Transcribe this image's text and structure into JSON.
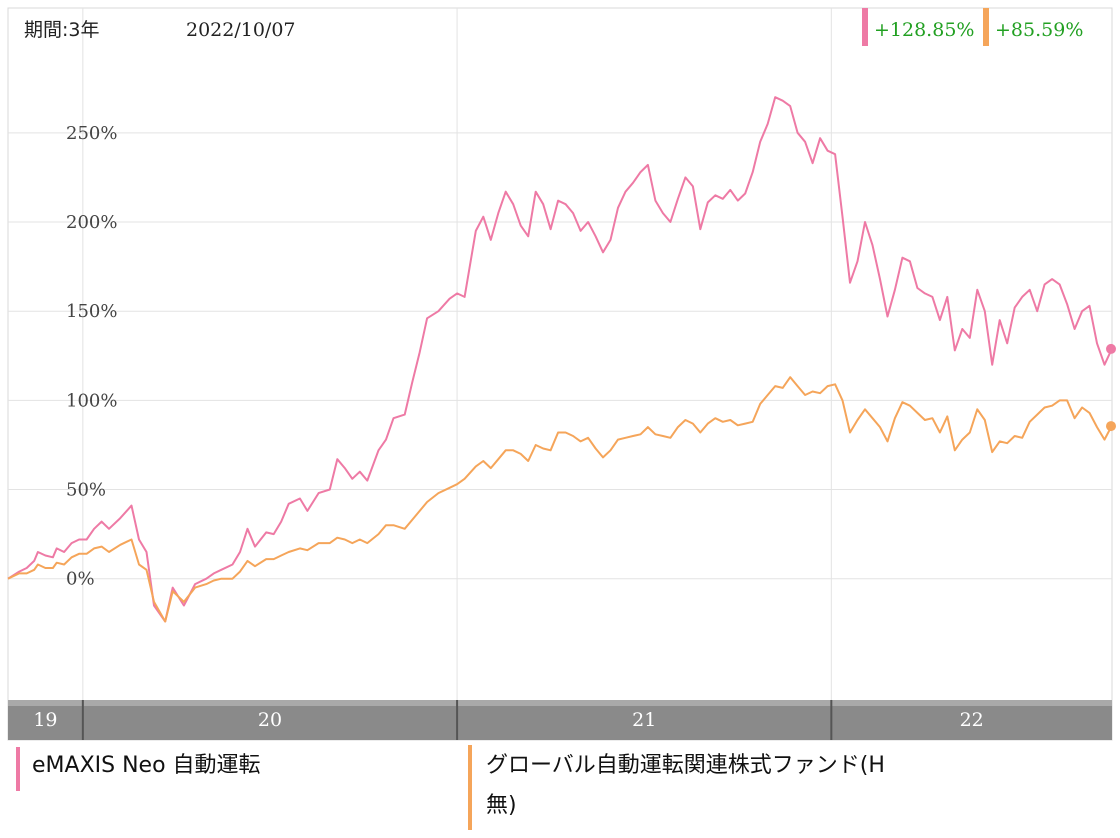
{
  "header": {
    "period": "期間:3年",
    "date": "2022/10/07",
    "badges": [
      {
        "value": "+128.85%",
        "color": "#ee7aa5"
      },
      {
        "value": "+85.59%",
        "color": "#f5a55a"
      }
    ]
  },
  "legend": [
    {
      "name": "eMAXIS Neo 自動運転",
      "color": "#ee7aa5"
    },
    {
      "name": "グローバル自動運転関連株式ファンド(H",
      "name_cont": "無)",
      "color": "#f5a55a"
    }
  ],
  "chart_data": {
    "type": "line",
    "title": "",
    "xlabel": "",
    "ylabel": "",
    "ylim": [
      -68,
      320
    ],
    "yticks": [
      0,
      50,
      100,
      150,
      200,
      250
    ],
    "ytick_labels": [
      "0%",
      "50%",
      "100%",
      "150%",
      "200%",
      "250%"
    ],
    "x_years": [
      {
        "label": "19",
        "start": 0,
        "end": 0.2
      },
      {
        "label": "20",
        "start": 0.2,
        "end": 1.2
      },
      {
        "label": "21",
        "start": 1.2,
        "end": 2.2
      },
      {
        "label": "22",
        "start": 2.2,
        "end": 2.95
      }
    ],
    "x_range": [
      0,
      2.95
    ],
    "grid": true,
    "series": [
      {
        "color": "#ee7aa5",
        "last_value": 128.85,
        "points": [
          [
            0,
            0
          ],
          [
            0.03,
            4
          ],
          [
            0.05,
            6
          ],
          [
            0.07,
            10
          ],
          [
            0.08,
            15
          ],
          [
            0.1,
            13
          ],
          [
            0.12,
            12
          ],
          [
            0.13,
            17
          ],
          [
            0.15,
            15
          ],
          [
            0.17,
            20
          ],
          [
            0.19,
            22
          ],
          [
            0.21,
            22
          ],
          [
            0.23,
            28
          ],
          [
            0.25,
            32
          ],
          [
            0.27,
            28
          ],
          [
            0.3,
            34
          ],
          [
            0.33,
            41
          ],
          [
            0.35,
            22
          ],
          [
            0.37,
            15
          ],
          [
            0.39,
            -15
          ],
          [
            0.42,
            -24
          ],
          [
            0.44,
            -5
          ],
          [
            0.47,
            -15
          ],
          [
            0.5,
            -3
          ],
          [
            0.53,
            0
          ],
          [
            0.55,
            3
          ],
          [
            0.57,
            5
          ],
          [
            0.6,
            8
          ],
          [
            0.62,
            15
          ],
          [
            0.64,
            28
          ],
          [
            0.66,
            18
          ],
          [
            0.69,
            26
          ],
          [
            0.71,
            25
          ],
          [
            0.73,
            32
          ],
          [
            0.75,
            42
          ],
          [
            0.78,
            45
          ],
          [
            0.8,
            38
          ],
          [
            0.83,
            48
          ],
          [
            0.86,
            50
          ],
          [
            0.88,
            67
          ],
          [
            0.9,
            62
          ],
          [
            0.92,
            56
          ],
          [
            0.94,
            60
          ],
          [
            0.96,
            55
          ],
          [
            0.99,
            72
          ],
          [
            1.01,
            78
          ],
          [
            1.03,
            90
          ],
          [
            1.06,
            92
          ],
          [
            1.08,
            110
          ],
          [
            1.1,
            127
          ],
          [
            1.12,
            146
          ],
          [
            1.15,
            150
          ],
          [
            1.18,
            157
          ],
          [
            1.2,
            160
          ],
          [
            1.22,
            158
          ],
          [
            1.25,
            195
          ],
          [
            1.27,
            203
          ],
          [
            1.29,
            190
          ],
          [
            1.31,
            205
          ],
          [
            1.33,
            217
          ],
          [
            1.35,
            210
          ],
          [
            1.37,
            198
          ],
          [
            1.39,
            192
          ],
          [
            1.41,
            217
          ],
          [
            1.43,
            210
          ],
          [
            1.45,
            196
          ],
          [
            1.47,
            212
          ],
          [
            1.49,
            210
          ],
          [
            1.51,
            205
          ],
          [
            1.53,
            195
          ],
          [
            1.55,
            200
          ],
          [
            1.57,
            192
          ],
          [
            1.59,
            183
          ],
          [
            1.61,
            190
          ],
          [
            1.63,
            208
          ],
          [
            1.65,
            217
          ],
          [
            1.67,
            222
          ],
          [
            1.69,
            228
          ],
          [
            1.71,
            232
          ],
          [
            1.73,
            212
          ],
          [
            1.75,
            205
          ],
          [
            1.77,
            200
          ],
          [
            1.79,
            213
          ],
          [
            1.81,
            225
          ],
          [
            1.83,
            220
          ],
          [
            1.85,
            196
          ],
          [
            1.87,
            211
          ],
          [
            1.89,
            215
          ],
          [
            1.91,
            213
          ],
          [
            1.93,
            218
          ],
          [
            1.95,
            212
          ],
          [
            1.97,
            216
          ],
          [
            1.99,
            228
          ],
          [
            2.01,
            245
          ],
          [
            2.03,
            255
          ],
          [
            2.05,
            270
          ],
          [
            2.07,
            268
          ],
          [
            2.09,
            265
          ],
          [
            2.11,
            250
          ],
          [
            2.13,
            245
          ],
          [
            2.15,
            233
          ],
          [
            2.17,
            247
          ],
          [
            2.19,
            240
          ],
          [
            2.21,
            238
          ],
          [
            2.23,
            203
          ],
          [
            2.25,
            166
          ],
          [
            2.27,
            178
          ],
          [
            2.29,
            200
          ],
          [
            2.31,
            187
          ],
          [
            2.33,
            168
          ],
          [
            2.35,
            147
          ],
          [
            2.37,
            162
          ],
          [
            2.39,
            180
          ],
          [
            2.41,
            178
          ],
          [
            2.43,
            163
          ],
          [
            2.45,
            160
          ],
          [
            2.47,
            158
          ],
          [
            2.49,
            145
          ],
          [
            2.51,
            158
          ],
          [
            2.53,
            128
          ],
          [
            2.55,
            140
          ],
          [
            2.57,
            135
          ],
          [
            2.59,
            162
          ],
          [
            2.61,
            150
          ],
          [
            2.63,
            120
          ],
          [
            2.65,
            145
          ],
          [
            2.67,
            132
          ],
          [
            2.69,
            152
          ],
          [
            2.71,
            158
          ],
          [
            2.73,
            162
          ],
          [
            2.75,
            150
          ],
          [
            2.77,
            165
          ],
          [
            2.79,
            168
          ],
          [
            2.81,
            165
          ],
          [
            2.83,
            154
          ],
          [
            2.85,
            140
          ],
          [
            2.87,
            150
          ],
          [
            2.89,
            153
          ],
          [
            2.91,
            132
          ],
          [
            2.93,
            120
          ],
          [
            2.95,
            129
          ]
        ]
      },
      {
        "color": "#f5a55a",
        "last_value": 85.59,
        "points": [
          [
            0,
            0
          ],
          [
            0.03,
            3
          ],
          [
            0.05,
            3
          ],
          [
            0.07,
            5
          ],
          [
            0.08,
            8
          ],
          [
            0.1,
            6
          ],
          [
            0.12,
            6
          ],
          [
            0.13,
            9
          ],
          [
            0.15,
            8
          ],
          [
            0.17,
            12
          ],
          [
            0.19,
            14
          ],
          [
            0.21,
            14
          ],
          [
            0.23,
            17
          ],
          [
            0.25,
            18
          ],
          [
            0.27,
            15
          ],
          [
            0.3,
            19
          ],
          [
            0.33,
            22
          ],
          [
            0.35,
            8
          ],
          [
            0.37,
            5
          ],
          [
            0.39,
            -13
          ],
          [
            0.42,
            -24
          ],
          [
            0.44,
            -7
          ],
          [
            0.47,
            -13
          ],
          [
            0.5,
            -5
          ],
          [
            0.53,
            -3
          ],
          [
            0.55,
            -1
          ],
          [
            0.57,
            0
          ],
          [
            0.6,
            0
          ],
          [
            0.62,
            4
          ],
          [
            0.64,
            10
          ],
          [
            0.66,
            7
          ],
          [
            0.69,
            11
          ],
          [
            0.71,
            11
          ],
          [
            0.73,
            13
          ],
          [
            0.75,
            15
          ],
          [
            0.78,
            17
          ],
          [
            0.8,
            16
          ],
          [
            0.83,
            20
          ],
          [
            0.86,
            20
          ],
          [
            0.88,
            23
          ],
          [
            0.9,
            22
          ],
          [
            0.92,
            20
          ],
          [
            0.94,
            22
          ],
          [
            0.96,
            20
          ],
          [
            0.99,
            25
          ],
          [
            1.01,
            30
          ],
          [
            1.03,
            30
          ],
          [
            1.06,
            28
          ],
          [
            1.08,
            33
          ],
          [
            1.1,
            38
          ],
          [
            1.12,
            43
          ],
          [
            1.15,
            48
          ],
          [
            1.18,
            51
          ],
          [
            1.2,
            53
          ],
          [
            1.22,
            56
          ],
          [
            1.25,
            63
          ],
          [
            1.27,
            66
          ],
          [
            1.29,
            62
          ],
          [
            1.31,
            67
          ],
          [
            1.33,
            72
          ],
          [
            1.35,
            72
          ],
          [
            1.37,
            70
          ],
          [
            1.39,
            66
          ],
          [
            1.41,
            75
          ],
          [
            1.43,
            73
          ],
          [
            1.45,
            72
          ],
          [
            1.47,
            82
          ],
          [
            1.49,
            82
          ],
          [
            1.51,
            80
          ],
          [
            1.53,
            77
          ],
          [
            1.55,
            79
          ],
          [
            1.57,
            73
          ],
          [
            1.59,
            68
          ],
          [
            1.61,
            72
          ],
          [
            1.63,
            78
          ],
          [
            1.65,
            79
          ],
          [
            1.67,
            80
          ],
          [
            1.69,
            81
          ],
          [
            1.71,
            85
          ],
          [
            1.73,
            81
          ],
          [
            1.75,
            80
          ],
          [
            1.77,
            79
          ],
          [
            1.79,
            85
          ],
          [
            1.81,
            89
          ],
          [
            1.83,
            87
          ],
          [
            1.85,
            82
          ],
          [
            1.87,
            87
          ],
          [
            1.89,
            90
          ],
          [
            1.91,
            88
          ],
          [
            1.93,
            89
          ],
          [
            1.95,
            86
          ],
          [
            1.97,
            87
          ],
          [
            1.99,
            88
          ],
          [
            2.01,
            98
          ],
          [
            2.03,
            103
          ],
          [
            2.05,
            108
          ],
          [
            2.07,
            107
          ],
          [
            2.09,
            113
          ],
          [
            2.11,
            108
          ],
          [
            2.13,
            103
          ],
          [
            2.15,
            105
          ],
          [
            2.17,
            104
          ],
          [
            2.19,
            108
          ],
          [
            2.21,
            109
          ],
          [
            2.23,
            100
          ],
          [
            2.25,
            82
          ],
          [
            2.27,
            89
          ],
          [
            2.29,
            95
          ],
          [
            2.31,
            90
          ],
          [
            2.33,
            85
          ],
          [
            2.35,
            77
          ],
          [
            2.37,
            90
          ],
          [
            2.39,
            99
          ],
          [
            2.41,
            97
          ],
          [
            2.43,
            93
          ],
          [
            2.45,
            89
          ],
          [
            2.47,
            90
          ],
          [
            2.49,
            82
          ],
          [
            2.51,
            91
          ],
          [
            2.53,
            72
          ],
          [
            2.55,
            78
          ],
          [
            2.57,
            82
          ],
          [
            2.59,
            95
          ],
          [
            2.61,
            89
          ],
          [
            2.63,
            71
          ],
          [
            2.65,
            77
          ],
          [
            2.67,
            76
          ],
          [
            2.69,
            80
          ],
          [
            2.71,
            79
          ],
          [
            2.73,
            88
          ],
          [
            2.75,
            92
          ],
          [
            2.77,
            96
          ],
          [
            2.79,
            97
          ],
          [
            2.81,
            100
          ],
          [
            2.83,
            100
          ],
          [
            2.85,
            90
          ],
          [
            2.87,
            96
          ],
          [
            2.89,
            93
          ],
          [
            2.91,
            85
          ],
          [
            2.93,
            78
          ],
          [
            2.95,
            86
          ]
        ]
      }
    ]
  }
}
